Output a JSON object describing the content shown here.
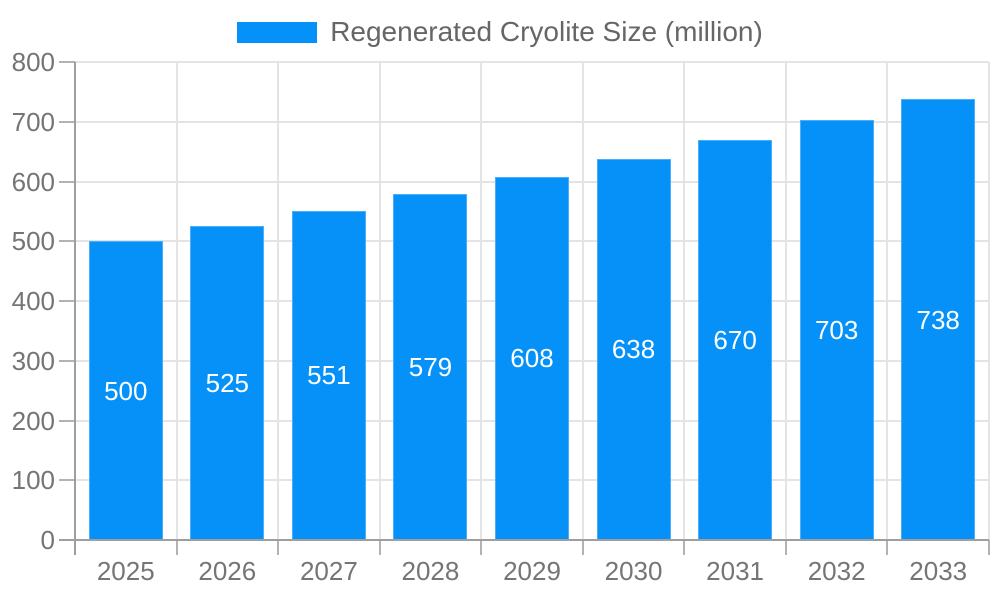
{
  "chart_data": {
    "type": "bar",
    "title": "",
    "legend": "Regenerated Cryolite Size (million)",
    "categories": [
      "2025",
      "2026",
      "2027",
      "2028",
      "2029",
      "2030",
      "2031",
      "2032",
      "2033"
    ],
    "values": [
      500,
      525,
      551,
      579,
      608,
      638,
      670,
      703,
      738
    ],
    "xlabel": "",
    "ylabel": "",
    "ylim": [
      0,
      800
    ],
    "ytick_step": 100,
    "yticks": [
      "0",
      "100",
      "200",
      "300",
      "400",
      "500",
      "600",
      "700",
      "800"
    ],
    "grid": true,
    "legend_position": "top",
    "value_labels": "centered-inside-bars",
    "colors": {
      "bar": "#0591f8",
      "grid": "#e4e4e4",
      "axis": "#9e9e9e",
      "tick_mark": "#b3b3b3",
      "tick_text": "#757575",
      "legend_text": "#666666",
      "value_label_text": "#ffffff",
      "background": "#ffffff"
    }
  }
}
